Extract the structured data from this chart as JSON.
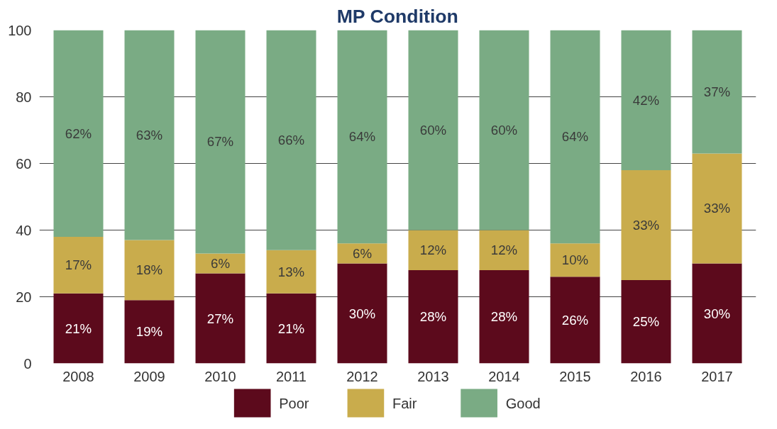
{
  "chart_data": {
    "type": "bar",
    "title": "MP Condition",
    "stacked": true,
    "categories": [
      "2008",
      "2009",
      "2010",
      "2011",
      "2012",
      "2013",
      "2014",
      "2015",
      "2016",
      "2017"
    ],
    "series": [
      {
        "name": "Poor",
        "color": "#5c0a1c",
        "values": [
          21,
          19,
          27,
          21,
          30,
          28,
          28,
          26,
          25,
          30
        ],
        "value_labels": [
          "21%",
          "19%",
          "27%",
          "21%",
          "30%",
          "28%",
          "28%",
          "26%",
          "25%",
          "30%"
        ]
      },
      {
        "name": "Fair",
        "color": "#c9ac4c",
        "values": [
          17,
          18,
          6,
          13,
          6,
          12,
          12,
          10,
          33,
          33
        ],
        "value_labels": [
          "17%",
          "18%",
          "6%",
          "13%",
          "6%",
          "12%",
          "12%",
          "10%",
          "33%",
          "33%"
        ]
      },
      {
        "name": "Good",
        "color": "#7aab84",
        "values": [
          62,
          63,
          67,
          66,
          64,
          60,
          60,
          64,
          42,
          37
        ],
        "value_labels": [
          "62%",
          "63%",
          "67%",
          "66%",
          "64%",
          "60%",
          "60%",
          "64%",
          "42%",
          "37%"
        ]
      }
    ],
    "ylim": [
      0,
      100
    ],
    "yticks": [
      0,
      20,
      40,
      60,
      80,
      100
    ],
    "grid": "y",
    "legend": "bottom"
  }
}
